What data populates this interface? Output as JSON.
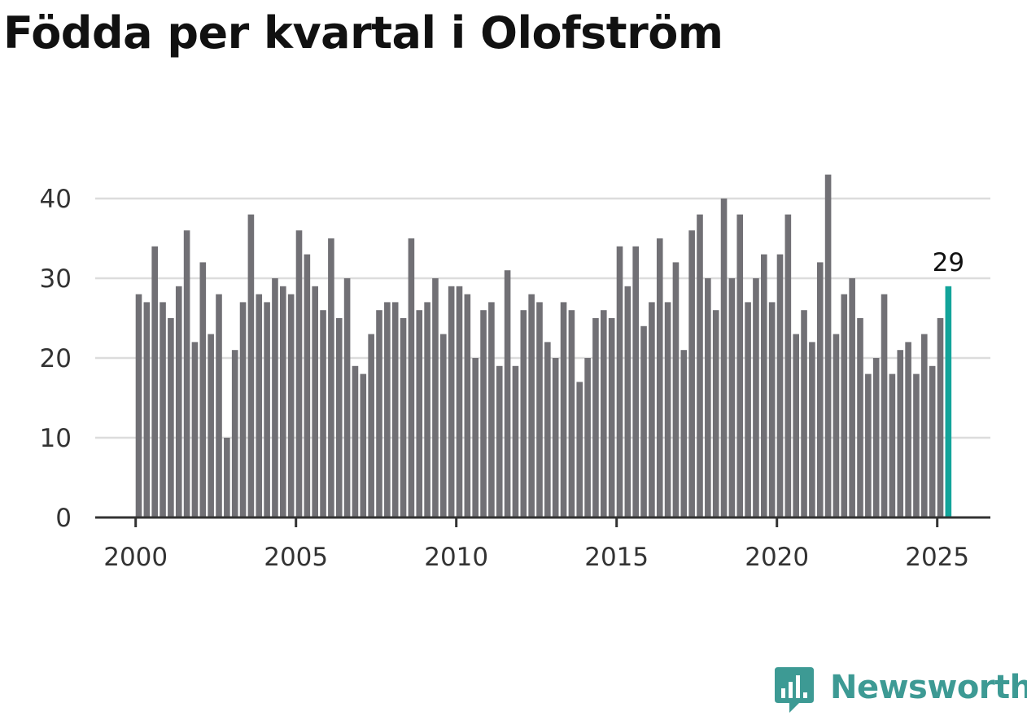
{
  "title": "Födda per kvartal i Olofström",
  "brand": {
    "name": "Newsworthy",
    "icon": "newsworthy-logo-icon",
    "color": "#3d9a94"
  },
  "colors": {
    "bar": "#717075",
    "highlight": "#12a49a",
    "grid": "#dcdcdc",
    "axis": "#333333"
  },
  "chart_data": {
    "type": "bar",
    "title": "Födda per kvartal i Olofström",
    "xlabel": "",
    "ylabel": "",
    "x_start": 2000,
    "x_ticks": [
      "2000",
      "2005",
      "2010",
      "2015",
      "2020",
      "2025"
    ],
    "y_ticks": [
      "0",
      "10",
      "20",
      "30",
      "40"
    ],
    "ylim": [
      0,
      44
    ],
    "grid": true,
    "legend": "none",
    "values": [
      28,
      27,
      34,
      27,
      25,
      29,
      36,
      22,
      32,
      23,
      28,
      10,
      21,
      27,
      38,
      28,
      27,
      30,
      29,
      28,
      36,
      33,
      29,
      26,
      35,
      25,
      30,
      19,
      18,
      23,
      26,
      27,
      27,
      25,
      35,
      26,
      27,
      30,
      23,
      29,
      29,
      28,
      20,
      26,
      27,
      19,
      31,
      19,
      26,
      28,
      27,
      22,
      20,
      27,
      26,
      17,
      20,
      25,
      26,
      25,
      34,
      29,
      34,
      24,
      27,
      35,
      27,
      32,
      21,
      36,
      38,
      30,
      26,
      40,
      30,
      38,
      27,
      30,
      33,
      27,
      33,
      38,
      23,
      26,
      22,
      32,
      43,
      23,
      28,
      30,
      25,
      18,
      20,
      28,
      18,
      21,
      22,
      18,
      23,
      19,
      25,
      29
    ],
    "highlight_index": 101,
    "highlight_label": "29"
  }
}
